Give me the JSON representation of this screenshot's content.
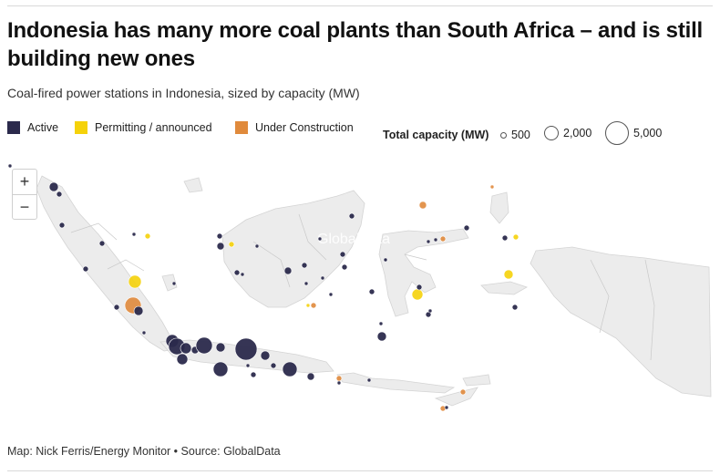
{
  "title": "Indonesia has many more coal plants than South Africa – and is still building new ones",
  "subtitle": "Coal-fired power stations in Indonesia, sized by capacity (MW)",
  "legend": {
    "categories": [
      {
        "label": "Active",
        "color": "#2b2a4c"
      },
      {
        "label": "Permitting / announced",
        "color": "#f5d20a"
      },
      {
        "label": "Under Construction",
        "color": "#e08a3c"
      }
    ],
    "size_title": "Total capacity (MW)",
    "sizes": [
      "500",
      "2,000",
      "5,000"
    ]
  },
  "zoom": {
    "in_label": "+",
    "out_label": "−"
  },
  "map_watermark": "GlobalData",
  "source": "Map: Nick Ferris/Energy Monitor • Source: GlobalData",
  "colors": {
    "active": "#2b2a4c",
    "permitting": "#f5d20a",
    "construction": "#e08a3c",
    "land": "#ececec",
    "border": "#c9c9c9"
  }
}
